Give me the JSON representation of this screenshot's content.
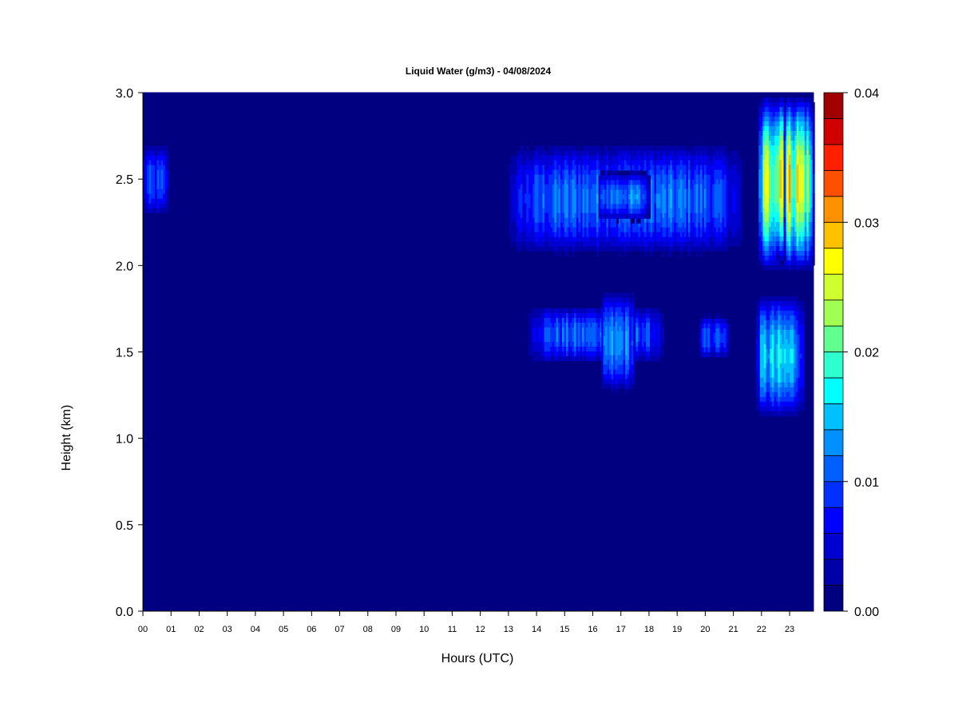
{
  "chart_data": {
    "type": "heatmap",
    "title": "Liquid Water (g/m3) - 04/08/2024",
    "xlabel": "Hours (UTC)",
    "ylabel": "Height (km)",
    "x_unit": "hour UTC",
    "y_unit": "km",
    "xlim": [
      0,
      23.85
    ],
    "ylim": [
      0,
      3.0
    ],
    "x_ticks": [
      {
        "value": 0,
        "label": "00"
      },
      {
        "value": 1,
        "label": "01"
      },
      {
        "value": 2,
        "label": "02"
      },
      {
        "value": 3,
        "label": "03"
      },
      {
        "value": 4,
        "label": "04"
      },
      {
        "value": 5,
        "label": "05"
      },
      {
        "value": 6,
        "label": "06"
      },
      {
        "value": 7,
        "label": "07"
      },
      {
        "value": 8,
        "label": "08"
      },
      {
        "value": 9,
        "label": "09"
      },
      {
        "value": 10,
        "label": "10"
      },
      {
        "value": 11,
        "label": "11"
      },
      {
        "value": 12,
        "label": "12"
      },
      {
        "value": 13,
        "label": "13"
      },
      {
        "value": 14,
        "label": "14"
      },
      {
        "value": 15,
        "label": "15"
      },
      {
        "value": 16,
        "label": "16"
      },
      {
        "value": 17,
        "label": "17"
      },
      {
        "value": 18,
        "label": "18"
      },
      {
        "value": 19,
        "label": "19"
      },
      {
        "value": 20,
        "label": "20"
      },
      {
        "value": 21,
        "label": "21"
      },
      {
        "value": 22,
        "label": "22"
      },
      {
        "value": 23,
        "label": "23"
      }
    ],
    "y_ticks": [
      {
        "value": 0.0,
        "label": "0.0"
      },
      {
        "value": 0.5,
        "label": "0.5"
      },
      {
        "value": 1.0,
        "label": "1.0"
      },
      {
        "value": 1.5,
        "label": "1.5"
      },
      {
        "value": 2.0,
        "label": "2.0"
      },
      {
        "value": 2.5,
        "label": "2.5"
      },
      {
        "value": 3.0,
        "label": "3.0"
      }
    ],
    "colorbar": {
      "min": 0.0,
      "max": 0.04,
      "ticks": [
        {
          "value": 0.0,
          "label": "0.00"
        },
        {
          "value": 0.01,
          "label": "0.01"
        },
        {
          "value": 0.02,
          "label": "0.02"
        },
        {
          "value": 0.03,
          "label": "0.03"
        },
        {
          "value": 0.04,
          "label": "0.04"
        }
      ],
      "colors": [
        "#000080",
        "#0000a8",
        "#0000d0",
        "#0000ff",
        "#0030ff",
        "#0060ff",
        "#0090ff",
        "#00c0ff",
        "#00ffff",
        "#30ffd0",
        "#60ff90",
        "#a0ff50",
        "#d0ff30",
        "#ffff00",
        "#ffc000",
        "#ff9000",
        "#ff5000",
        "#ff2000",
        "#d00000",
        "#a00000"
      ]
    },
    "background_value": 0.0,
    "cloud_regions": [
      {
        "x": [
          0.0,
          0.9
        ],
        "y": [
          2.27,
          2.72
        ],
        "peak": 0.0115
      },
      {
        "x": [
          13.0,
          21.3
        ],
        "y": [
          2.04,
          2.72
        ],
        "peak": 0.0145
      },
      {
        "x": [
          16.2,
          18.0
        ],
        "y": [
          2.25,
          2.55
        ],
        "peak": 0.0155
      },
      {
        "x": [
          13.7,
          18.5
        ],
        "y": [
          1.42,
          1.78
        ],
        "peak": 0.0135
      },
      {
        "x": [
          16.3,
          17.5
        ],
        "y": [
          1.25,
          1.87
        ],
        "peak": 0.0155
      },
      {
        "x": [
          19.8,
          20.8
        ],
        "y": [
          1.45,
          1.72
        ],
        "peak": 0.0125
      },
      {
        "x": [
          21.9,
          23.85
        ],
        "y": [
          1.95,
          3.0
        ],
        "peak": 0.0325
      },
      {
        "x": [
          22.5,
          22.8
        ],
        "y": [
          2.0,
          3.0
        ],
        "peak": 0.036
      },
      {
        "x": [
          21.8,
          23.5
        ],
        "y": [
          1.1,
          1.85
        ],
        "peak": 0.019
      }
    ]
  }
}
